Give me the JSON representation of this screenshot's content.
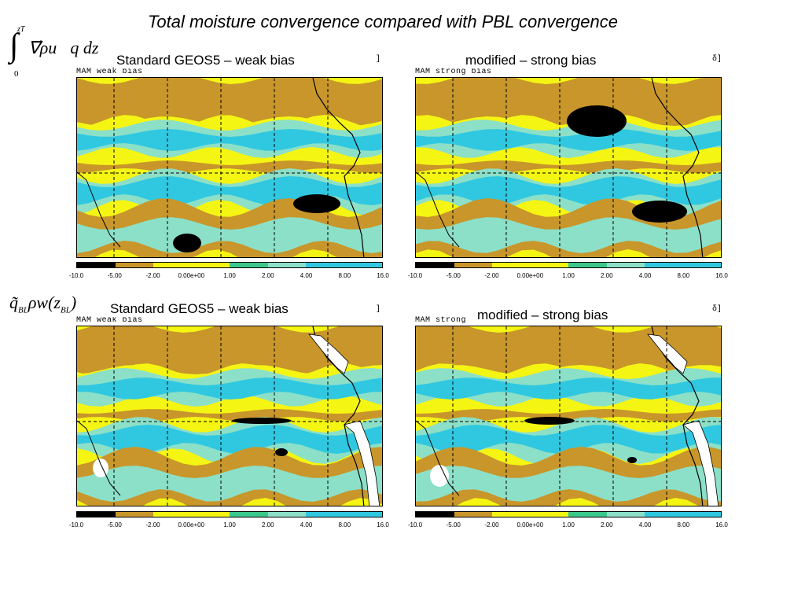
{
  "title": "Total moisture convergence compared with PBL convergence",
  "equations": {
    "integral_upper": "zT",
    "integral_lower": "0",
    "integral_symbol": "∫",
    "integral_body": "∇⃗ρu⃗q dz",
    "pbl_q": "q̃",
    "pbl_q_sub": "BL",
    "pbl_mid": "ρw(z",
    "pbl_z_sub": "BL",
    "pbl_end": ")"
  },
  "panels": [
    {
      "label": "Standard GEOS5 – weak bias",
      "tag": "MAM weak bias"
    },
    {
      "label": "modified – strong bias",
      "tag": "MAM strong bias"
    },
    {
      "label": "Standard GEOS5 – weak bias",
      "tag": "MAM weak bias"
    },
    {
      "label": "modified – strong bias",
      "tag": "MAM strong"
    }
  ],
  "colorbar": {
    "ticks": [
      "-10.0",
      "-5.00",
      "-2.00",
      "0.00e+00",
      "1.00",
      "2.00",
      "4.00",
      "8.00",
      "16.0"
    ],
    "colors": [
      "#000000",
      "#c8962a",
      "#f5f513",
      "#f5f513",
      "#3cc88c",
      "#8ce0c8",
      "#30c8e0",
      "#30c8e0"
    ]
  },
  "map_colors": {
    "negative_strong": "#000000",
    "negative": "#c8962a",
    "neutral": "#f5f513",
    "positive_low": "#8ce0c8",
    "positive_mid": "#3cc88c",
    "positive_high": "#30c8e0",
    "land": "#ffffff"
  }
}
